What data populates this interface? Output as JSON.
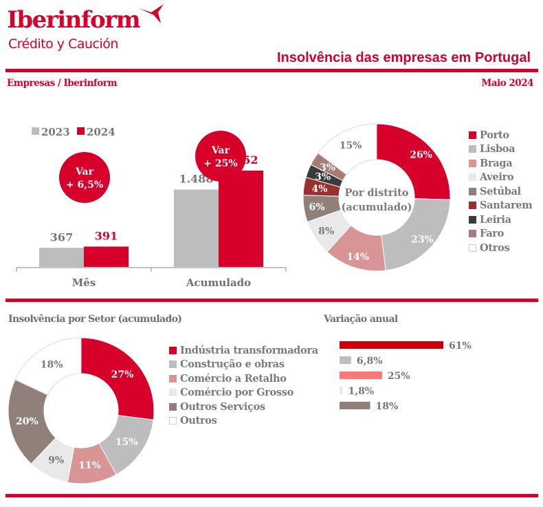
{
  "header": {
    "brand": "Iberinform",
    "brand_sub": "Crédito y Caución",
    "title": "Insolvência das empresas em Portugal",
    "left_label": "Empresas / Iberinform",
    "date_label": "Maio 2024",
    "brand_color": "#d6002a"
  },
  "chart_data": [
    {
      "id": "comparison",
      "type": "bar",
      "title": "",
      "categories": [
        "Mês",
        "Acumulado"
      ],
      "series": [
        {
          "name": "2023",
          "color": "#bdbdbd",
          "label_color": "#777777",
          "values": [
            367,
            1488
          ],
          "labels": [
            "367",
            "1.488"
          ]
        },
        {
          "name": "2024",
          "color": "#d6002a",
          "label_color": "#d6002a",
          "values": [
            391,
            1852
          ],
          "labels": [
            "391",
            "1.852"
          ]
        }
      ],
      "badges": [
        {
          "line1": "Var",
          "line2": "+ 6,5%"
        },
        {
          "line1": "Var",
          "line2": "+ 25%"
        }
      ],
      "legend": [
        "2023",
        "2024"
      ],
      "ylim": [
        0,
        1852
      ],
      "grid": false,
      "legend_position": "top-left"
    },
    {
      "id": "districts",
      "type": "pie",
      "title": "Por distrito (acumulado)",
      "center_label": [
        "Por distrito",
        "(acumulado)"
      ],
      "labels": [
        "Porto",
        "Lisboa",
        "Braga",
        "Aveiro",
        "Setúbal",
        "Santarem",
        "Leiria",
        "Faro",
        "Otros"
      ],
      "values": [
        26,
        23,
        14,
        8,
        6,
        4,
        3,
        3,
        15
      ],
      "value_labels": [
        "26%",
        "23%",
        "14%",
        "8%",
        "6%",
        "4%",
        "3%",
        "3%",
        "15%"
      ],
      "colors": [
        "#d6002a",
        "#bdbdbd",
        "#d99595",
        "#e9e9e9",
        "#918079",
        "#9b2f30",
        "#3b3b3b",
        "#a77b78",
        "#ffffff"
      ],
      "label_colors": [
        "#ffffff",
        "#ffffff",
        "#ffffff",
        "#7a7a7a",
        "#ffffff",
        "#ffffff",
        "#ffffff",
        "#ffffff",
        "#7a7a7a"
      ],
      "legend_position": "right"
    },
    {
      "id": "sectors",
      "type": "pie",
      "title": "Insolvência por Setor (acumulado)",
      "labels": [
        "Indústria transformadora",
        "Construção e obras",
        "Comércio a Retalho",
        "Comércio por Grosso",
        "Outros Serviços",
        "Outros"
      ],
      "values": [
        27,
        15,
        11,
        9,
        20,
        18
      ],
      "value_labels": [
        "27%",
        "15%",
        "11%",
        "9%",
        "20%",
        "18%"
      ],
      "colors": [
        "#d6002a",
        "#bdbdbd",
        "#d99595",
        "#e9e9e9",
        "#918079",
        "#ffffff"
      ],
      "label_colors": [
        "#ffffff",
        "#ffffff",
        "#ffffff",
        "#7a7a7a",
        "#ffffff",
        "#7a7a7a"
      ],
      "legend_position": "right"
    },
    {
      "id": "annual",
      "type": "bar",
      "orientation": "horizontal",
      "title": "Variação anual",
      "categories": [
        "Indústria transformadora",
        "Construção e obras",
        "Comércio a Retalho",
        "Comércio por Grosso",
        "Outros Serviços"
      ],
      "values": [
        61,
        6.8,
        25,
        1.8,
        18
      ],
      "value_labels": [
        "61%",
        "6,8%",
        "25%",
        "1,8%",
        "18%"
      ],
      "colors": [
        "#c8000a",
        "#bdbdbd",
        "#ff7676",
        "#e9e9e9",
        "#918079"
      ],
      "xlim": [
        0,
        61
      ],
      "grid": false
    }
  ]
}
